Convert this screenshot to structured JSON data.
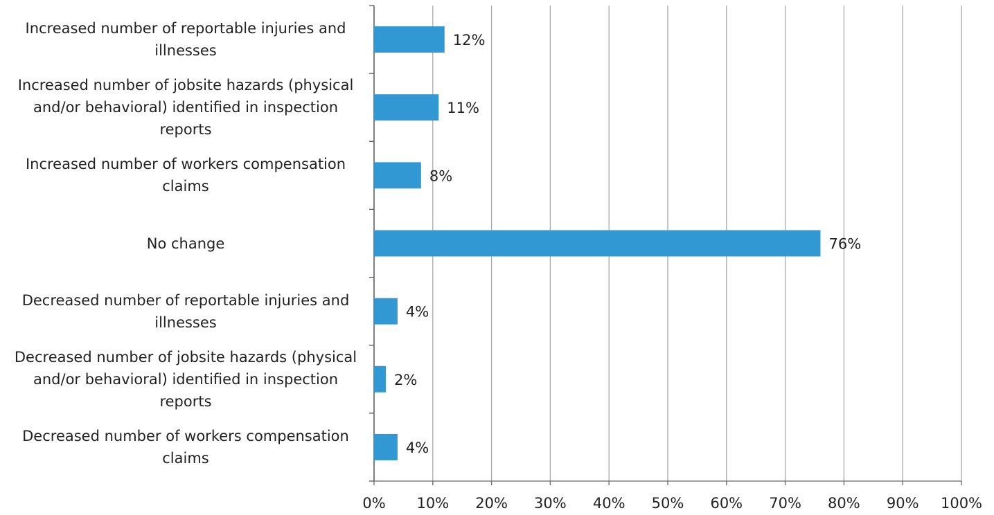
{
  "chart_data": {
    "type": "bar",
    "orientation": "horizontal",
    "categories": [
      "Increased number of reportable injuries and illnesses",
      "Increased number of jobsite hazards (physical and/or behavioral) identified in inspection reports",
      "Increased number of workers compensation claims",
      "No change",
      "Decreased number of reportable injuries and illnesses",
      "Decreased number of jobsite hazards (physical and/or behavioral) identified in inspection reports",
      "Decreased number of workers compensation claims"
    ],
    "values": [
      12,
      11,
      8,
      76,
      4,
      2,
      4
    ],
    "value_labels": [
      "12%",
      "11%",
      "8%",
      "76%",
      "4%",
      "2%",
      "4%"
    ],
    "color": "#3198d3",
    "xlim": [
      0,
      100
    ],
    "xticks": [
      {
        "value": 0,
        "label": "0%"
      },
      {
        "value": 10,
        "label": "10%"
      },
      {
        "value": 20,
        "label": "20%"
      },
      {
        "value": 30,
        "label": "30%"
      },
      {
        "value": 40,
        "label": "40%"
      },
      {
        "value": 50,
        "label": "50%"
      },
      {
        "value": 60,
        "label": "60%"
      },
      {
        "value": 70,
        "label": "70%"
      },
      {
        "value": 80,
        "label": "80%"
      },
      {
        "value": 90,
        "label": "90%"
      },
      {
        "value": 100,
        "label": "100%"
      }
    ],
    "grid": true
  }
}
